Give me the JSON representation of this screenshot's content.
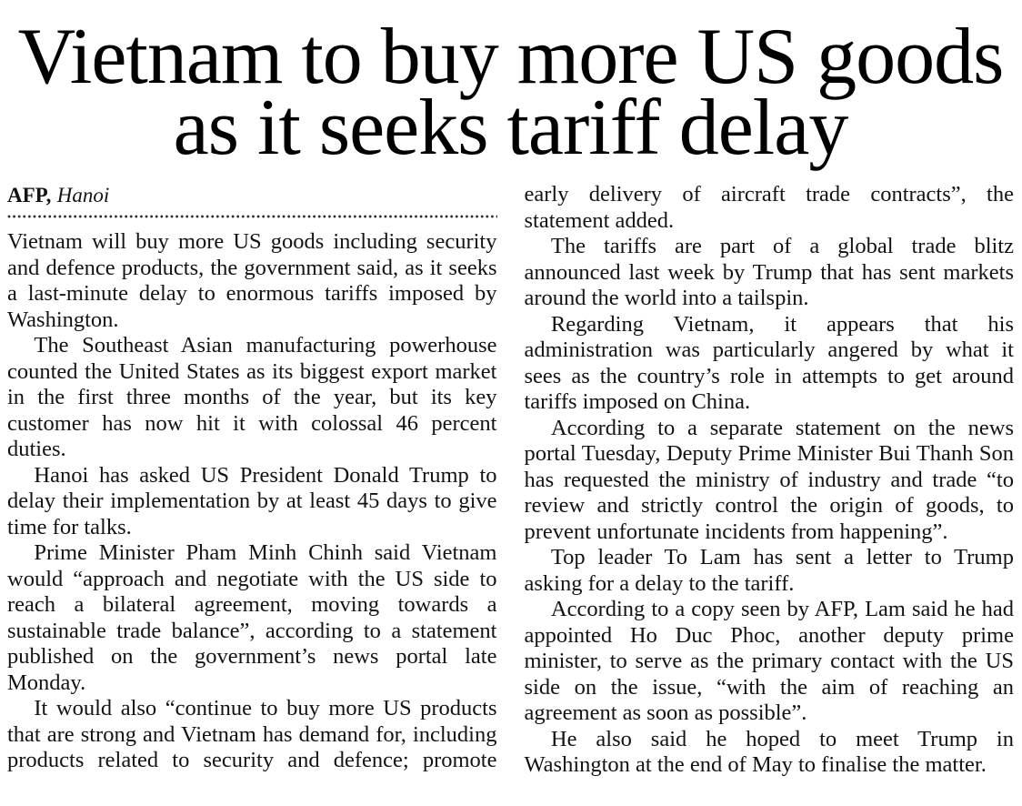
{
  "theme": {
    "background": "#ffffff",
    "ink": "#131313",
    "headline_ink": "#000000",
    "divider": "#2b2b2b"
  },
  "article": {
    "headline_lines": [
      "Vietnam to buy more US goods",
      "as it seeks tariff delay"
    ],
    "byline": {
      "agency": "AFP,",
      "location": "Hanoi"
    },
    "paragraphs": [
      "Vietnam will buy more US goods including security and defence products, the government said, as it seeks a last-minute delay to enormous tariffs imposed by Washington.",
      "The Southeast Asian manufacturing powerhouse counted the United States as its biggest export market in the first three months of the year, but its key customer has now hit it with colossal 46 percent duties.",
      "Hanoi has asked US President Donald Trump to delay their implementation by at least 45 days to give time for talks.",
      "Prime Minister Pham Minh Chinh said Vietnam would “approach and negotiate with the US side to reach a bilateral agreement, moving towards a sustainable trade balance”, according to a statement published on the government’s news portal late Monday.",
      "It would also “continue to buy more US products that are strong and Vietnam has demand for, including products related to security and defence; promote early delivery of aircraft trade contracts”, the statement added.",
      "The tariffs are part of a global trade blitz announced last week by Trump that has sent markets around the world into a tailspin.",
      "Regarding Vietnam, it appears that his administration was particularly angered by what it sees as the country’s role in attempts to get around tariffs imposed on China.",
      "According to a separate statement on the news portal Tuesday, Deputy Prime Minister Bui Thanh Son has requested the ministry of industry and trade “to review and strictly control the origin of goods, to prevent unfortunate incidents from happening”.",
      "Top leader To Lam has sent a letter to Trump asking for a delay to the tariff.",
      "According to a copy seen by AFP, Lam said he had appointed Ho Duc Phoc, another deputy prime minister, to serve as the primary contact with the US side on the issue, “with the aim of reaching an agreement as soon as possible”.",
      "He also said he hoped to meet Trump in Washington at the end of May to finalise the matter."
    ]
  }
}
